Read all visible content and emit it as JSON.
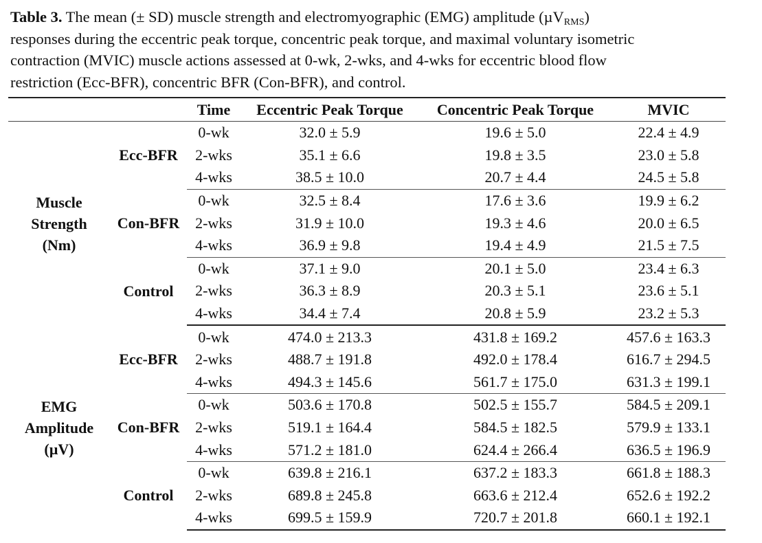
{
  "caption": {
    "label": "Table 3.",
    "line1_a": " The mean (± SD) muscle strength and electromyographic (EMG) amplitude (µV",
    "line1_sub": "RMS",
    "line1_b": ")",
    "line2": "responses during the eccentric peak torque, concentric peak torque, and maximal voluntary isometric",
    "line3": "contraction (MVIC) muscle actions assessed at 0-wk, 2-wks, and 4-wks for eccentric blood flow",
    "line4": "restriction (Ecc-BFR), concentric BFR (Con-BFR), and control."
  },
  "headers": [
    "",
    "",
    "Time",
    "Eccentric Peak Torque",
    "Concentric Peak Torque",
    "MVIC"
  ],
  "sections": [
    {
      "label": [
        "Muscle",
        "Strength",
        "(Nm)"
      ],
      "groups": [
        {
          "name": "Ecc-BFR",
          "rows": [
            [
              "0-wk",
              "32.0 ± 5.9",
              "19.6 ± 5.0",
              "22.4 ± 4.9"
            ],
            [
              "2-wks",
              "35.1 ± 6.6",
              "19.8 ± 3.5",
              "23.0 ± 5.8"
            ],
            [
              "4-wks",
              "38.5 ± 10.0",
              "20.7 ± 4.4",
              "24.5 ± 5.8"
            ]
          ]
        },
        {
          "name": "Con-BFR",
          "rows": [
            [
              "0-wk",
              "32.5 ± 8.4",
              "17.6 ± 3.6",
              "19.9 ± 6.2"
            ],
            [
              "2-wks",
              "31.9 ± 10.0",
              "19.3 ± 4.6",
              "20.0 ± 6.5"
            ],
            [
              "4-wks",
              "36.9 ± 9.8",
              "19.4 ± 4.9",
              "21.5 ± 7.5"
            ]
          ]
        },
        {
          "name": "Control",
          "rows": [
            [
              "0-wk",
              "37.1 ± 9.0",
              "20.1 ± 5.0",
              "23.4 ± 6.3"
            ],
            [
              "2-wks",
              "36.3 ± 8.9",
              "20.3 ± 5.1",
              "23.6 ± 5.1"
            ],
            [
              "4-wks",
              "34.4 ± 7.4",
              "20.8 ± 5.9",
              "23.2 ± 5.3"
            ]
          ]
        }
      ]
    },
    {
      "label": [
        "EMG",
        "Amplitude",
        "(µV)"
      ],
      "groups": [
        {
          "name": "Ecc-BFR",
          "rows": [
            [
              "0-wk",
              "474.0 ± 213.3",
              "431.8 ± 169.2",
              "457.6 ± 163.3"
            ],
            [
              "2-wks",
              "488.7 ± 191.8",
              "492.0 ± 178.4",
              "616.7 ± 294.5"
            ],
            [
              "4-wks",
              "494.3 ± 145.6",
              "561.7 ± 175.0",
              "631.3 ± 199.1"
            ]
          ]
        },
        {
          "name": "Con-BFR",
          "rows": [
            [
              "0-wk",
              "503.6 ± 170.8",
              "502.5 ± 155.7",
              "584.5 ± 209.1"
            ],
            [
              "2-wks",
              "519.1 ± 164.4",
              "584.5 ± 182.5",
              "579.9 ± 133.1"
            ],
            [
              "4-wks",
              "571.2 ± 181.0",
              "624.4 ± 266.4",
              "636.5 ± 196.9"
            ]
          ]
        },
        {
          "name": "Control",
          "rows": [
            [
              "0-wk",
              "639.8 ± 216.1",
              "637.2 ± 183.3",
              "661.8 ± 188.3"
            ],
            [
              "2-wks",
              "689.8 ± 245.8",
              "663.6 ± 212.4",
              "652.6 ± 192.2"
            ],
            [
              "4-wks",
              "699.5 ± 159.9",
              "720.7 ± 201.8",
              "660.1 ± 192.1"
            ]
          ]
        }
      ]
    }
  ]
}
